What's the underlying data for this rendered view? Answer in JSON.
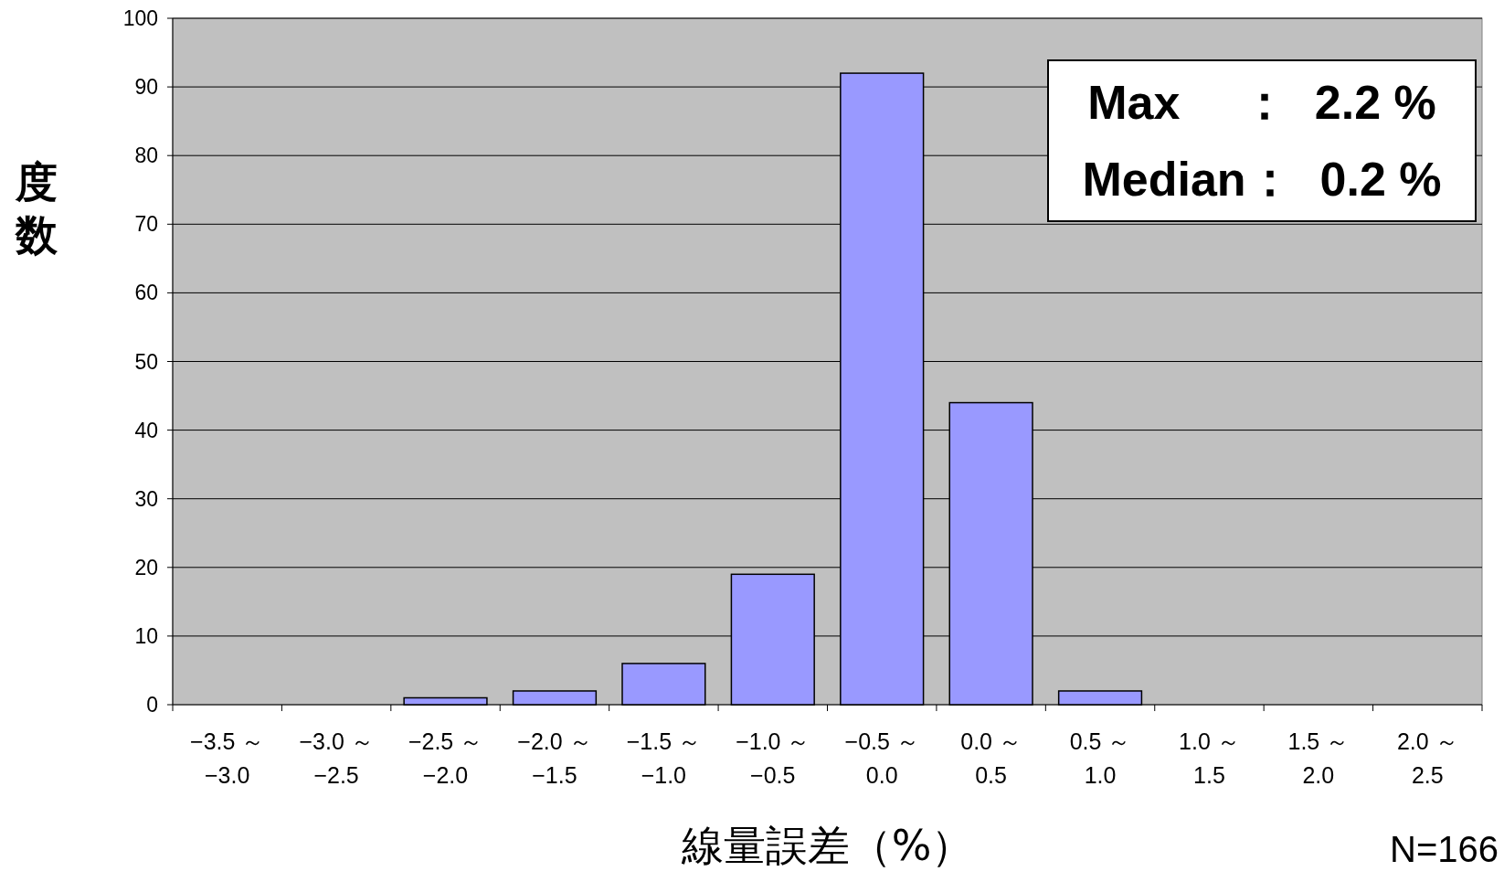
{
  "chart_data": {
    "type": "bar",
    "categories": [
      "−3.5 ～ −3.0",
      "−3.0 ～ −2.5",
      "−2.5 ～ −2.0",
      "−2.0 ～ −1.5",
      "−1.5 ～ −1.0",
      "−1.0 ～ −0.5",
      "−0.5 ～ 0.0",
      "0.0 ～ 0.5",
      "0.5 ～ 1.0",
      "1.0 ～ 1.5",
      "1.5 ～ 2.0",
      "2.0 ～ 2.5"
    ],
    "values": [
      0,
      0,
      1,
      2,
      6,
      19,
      92,
      44,
      2,
      0,
      0,
      0
    ],
    "color": "#9999ff",
    "ylim": [
      0,
      100
    ],
    "yticks": [
      0,
      10,
      20,
      30,
      40,
      50,
      60,
      70,
      80,
      90,
      100
    ],
    "grid": "y",
    "xlabel": "線量誤差（%）",
    "ylabel": "度数",
    "annotations": [
      "Max　 ：  2.2 %",
      "Median：  0.2 %",
      "N=166"
    ]
  }
}
